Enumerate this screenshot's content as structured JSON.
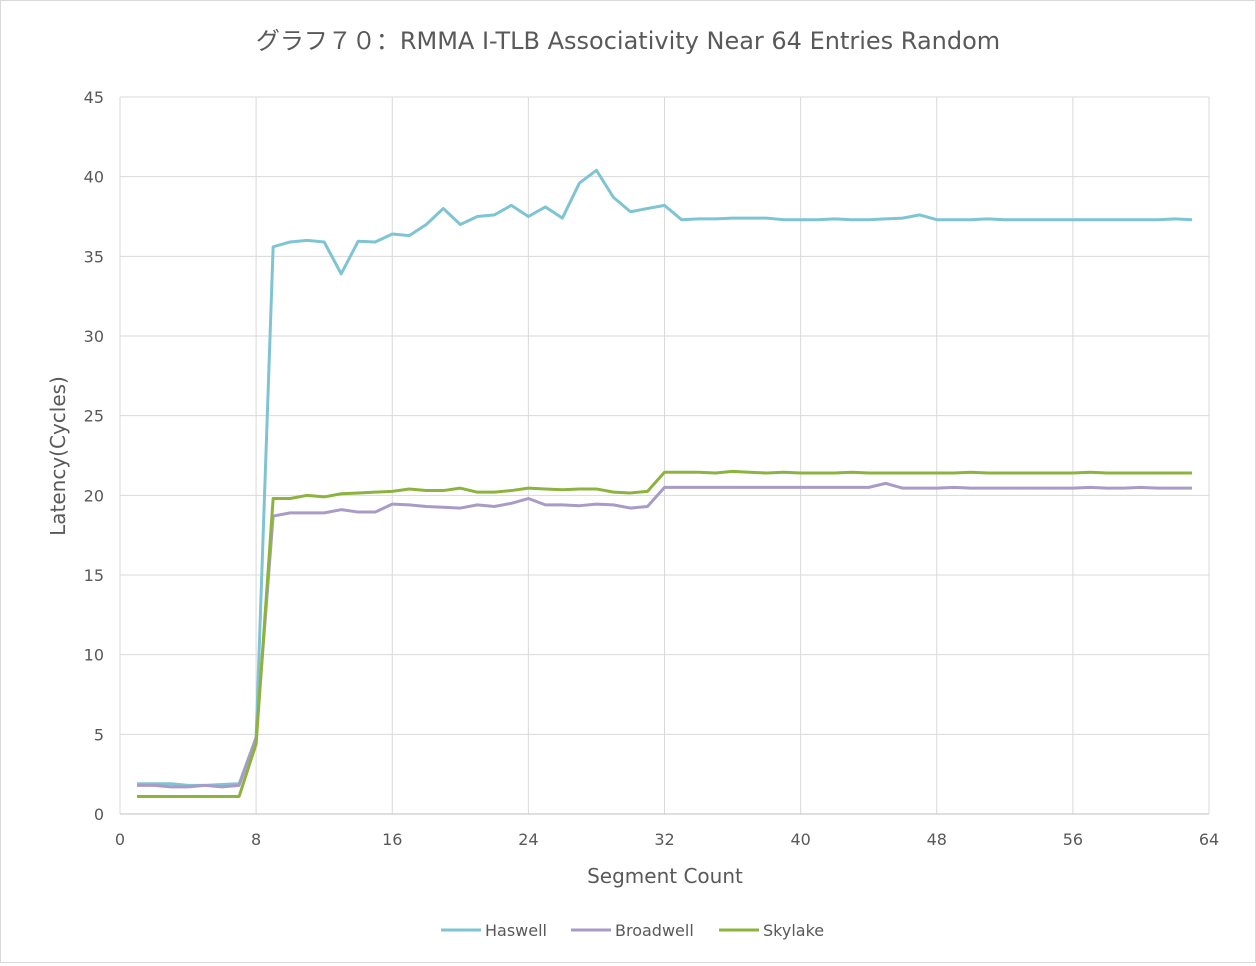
{
  "chart_data": {
    "type": "line",
    "title": "グラフ７０：RMMA I-TLB Associativity Near 64 Entries Random",
    "xlabel": "Segment Count",
    "ylabel": "Latency(Cycles)",
    "xlim": [
      0,
      64
    ],
    "ylim": [
      0,
      45
    ],
    "x_ticks": [
      "0",
      "8",
      "16",
      "24",
      "32",
      "40",
      "48",
      "56",
      "64"
    ],
    "y_ticks": [
      "0",
      "5",
      "10",
      "15",
      "20",
      "25",
      "30",
      "35",
      "40",
      "45"
    ],
    "grid": true,
    "legend_position": "bottom",
    "x": [
      1,
      2,
      3,
      4,
      5,
      6,
      7,
      8,
      9,
      10,
      11,
      12,
      13,
      14,
      15,
      16,
      17,
      18,
      19,
      20,
      21,
      22,
      23,
      24,
      25,
      26,
      27,
      28,
      29,
      30,
      31,
      32,
      33,
      34,
      35,
      36,
      37,
      38,
      39,
      40,
      41,
      42,
      43,
      44,
      45,
      46,
      47,
      48,
      49,
      50,
      51,
      52,
      53,
      54,
      55,
      56,
      57,
      58,
      59,
      60,
      61,
      62,
      63
    ],
    "series": [
      {
        "name": "Haswell",
        "color": "#7fc4d3",
        "values": [
          1.9,
          1.9,
          1.9,
          1.8,
          1.8,
          1.85,
          1.9,
          4.8,
          35.6,
          35.9,
          36.0,
          35.9,
          33.9,
          35.95,
          35.9,
          36.4,
          36.3,
          37.0,
          38.0,
          37.0,
          37.5,
          37.6,
          38.2,
          37.5,
          38.1,
          37.4,
          39.6,
          40.4,
          38.7,
          37.8,
          38.0,
          38.2,
          37.3,
          37.35,
          37.35,
          37.4,
          37.4,
          37.4,
          37.3,
          37.3,
          37.3,
          37.35,
          37.3,
          37.3,
          37.35,
          37.4,
          37.6,
          37.3,
          37.3,
          37.3,
          37.35,
          37.3,
          37.3,
          37.3,
          37.3,
          37.3,
          37.3,
          37.3,
          37.3,
          37.3,
          37.3,
          37.35,
          37.3
        ]
      },
      {
        "name": "Broadwell",
        "color": "#a99bc7",
        "values": [
          1.8,
          1.8,
          1.7,
          1.7,
          1.8,
          1.7,
          1.8,
          4.8,
          18.7,
          18.9,
          18.9,
          18.9,
          19.1,
          18.95,
          18.95,
          19.45,
          19.4,
          19.3,
          19.25,
          19.2,
          19.4,
          19.3,
          19.5,
          19.8,
          19.4,
          19.4,
          19.35,
          19.45,
          19.4,
          19.2,
          19.3,
          20.5,
          20.5,
          20.5,
          20.5,
          20.5,
          20.5,
          20.5,
          20.5,
          20.5,
          20.5,
          20.5,
          20.5,
          20.5,
          20.75,
          20.45,
          20.45,
          20.45,
          20.5,
          20.45,
          20.45,
          20.45,
          20.45,
          20.45,
          20.45,
          20.45,
          20.5,
          20.45,
          20.45,
          20.5,
          20.45,
          20.45,
          20.45
        ]
      },
      {
        "name": "Skylake",
        "color": "#8db33f",
        "values": [
          1.1,
          1.1,
          1.1,
          1.1,
          1.1,
          1.1,
          1.1,
          4.4,
          19.8,
          19.8,
          20.0,
          19.9,
          20.1,
          20.15,
          20.2,
          20.25,
          20.4,
          20.3,
          20.3,
          20.45,
          20.2,
          20.2,
          20.3,
          20.45,
          20.4,
          20.35,
          20.4,
          20.4,
          20.2,
          20.15,
          20.25,
          21.45,
          21.45,
          21.45,
          21.4,
          21.5,
          21.45,
          21.4,
          21.45,
          21.4,
          21.4,
          21.4,
          21.45,
          21.4,
          21.4,
          21.4,
          21.4,
          21.4,
          21.4,
          21.45,
          21.4,
          21.4,
          21.4,
          21.4,
          21.4,
          21.4,
          21.45,
          21.4,
          21.4,
          21.4,
          21.4,
          21.4,
          21.4
        ]
      }
    ]
  }
}
